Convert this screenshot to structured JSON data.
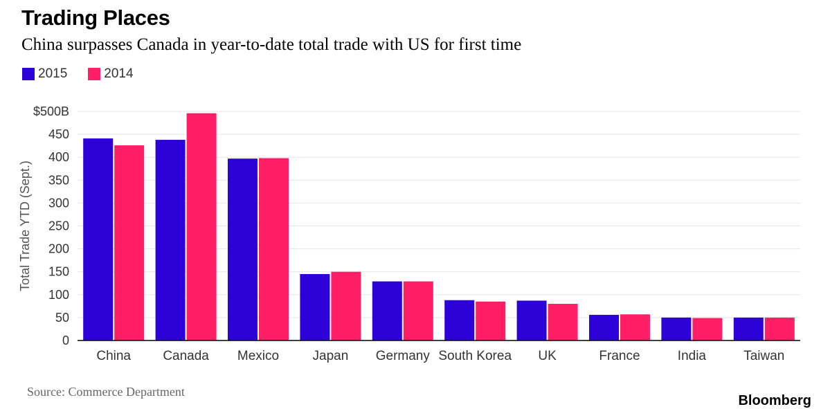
{
  "header": {
    "title": "Trading Places",
    "subtitle": "China surpasses Canada in year-to-date total trade with US for first time"
  },
  "legend": [
    {
      "label": "2015",
      "color": "#2c02d9"
    },
    {
      "label": "2014",
      "color": "#ff1f66"
    }
  ],
  "footer": {
    "source": "Source: Commerce Department",
    "brand": "Bloomberg"
  },
  "chart_data": {
    "type": "bar",
    "title": "Trading Places",
    "subtitle": "China surpasses Canada in year-to-date total trade with US for first time",
    "xlabel": "",
    "ylabel": "Total Trade YTD (Sept.)",
    "ylim": [
      0,
      500
    ],
    "yticks": [
      0,
      50,
      100,
      150,
      200,
      250,
      300,
      350,
      400,
      450,
      500
    ],
    "ytick_labels": [
      "0",
      "50",
      "100",
      "150",
      "200",
      "250",
      "300",
      "350",
      "400",
      "450",
      "$500B"
    ],
    "grid": true,
    "legend_position": "top-left",
    "categories": [
      "China",
      "Canada",
      "Mexico",
      "Japan",
      "Germany",
      "South Korea",
      "UK",
      "France",
      "India",
      "Taiwan"
    ],
    "series": [
      {
        "name": "2015",
        "color": "#2c02d9",
        "values": [
          441,
          438,
          397,
          145,
          129,
          88,
          87,
          56,
          50,
          50
        ]
      },
      {
        "name": "2014",
        "color": "#ff1f66",
        "values": [
          426,
          496,
          398,
          150,
          129,
          85,
          80,
          57,
          49,
          50
        ]
      }
    ]
  }
}
